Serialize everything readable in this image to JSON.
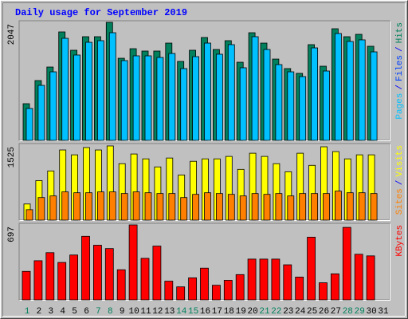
{
  "chart_data": [
    {
      "type": "bar",
      "title": "Daily usage for September 2019",
      "ylim": [
        0,
        2047
      ],
      "yticks": [
        2047
      ],
      "legend": [
        {
          "name": "Pages",
          "color": "#00c0ff"
        },
        {
          "name": "Files",
          "color": "#0040ff"
        },
        {
          "name": "Hits",
          "color": "#00805c"
        }
      ],
      "separator": "/",
      "series": [
        {
          "color": "#00805c",
          "values": [
            636,
            1037,
            1272,
            1881,
            1563,
            1798,
            1798,
            2047,
            1424,
            1590,
            1549,
            1549,
            1687,
            1369,
            1563,
            1784,
            1576,
            1729,
            1355,
            1867,
            1687,
            1410,
            1245,
            1162,
            1660,
            1286,
            1936,
            1798,
            1839,
            1632,
            null
          ]
        },
        {
          "color": "#00c0ff",
          "values": [
            553,
            954,
            1189,
            1770,
            1480,
            1701,
            1729,
            1867,
            1383,
            1466,
            1466,
            1438,
            1507,
            1245,
            1452,
            1687,
            1494,
            1660,
            1259,
            1798,
            1576,
            1314,
            1189,
            1106,
            1604,
            1203,
            1853,
            1715,
            1743,
            1535,
            null
          ]
        }
      ]
    },
    {
      "type": "bar",
      "ylim": [
        0,
        1525
      ],
      "yticks": [
        1525
      ],
      "legend": [
        {
          "name": "Sites",
          "color": "#ff8000"
        },
        {
          "name": "Visits",
          "color": "#ffff00"
        }
      ],
      "separator": "/",
      "series": [
        {
          "color": "#ffff00",
          "values": [
            328,
            804,
            1000,
            1427,
            1328,
            1476,
            1427,
            1509,
            1148,
            1345,
            1246,
            1082,
            1263,
            918,
            1197,
            1246,
            1246,
            1296,
            1033,
            1361,
            1296,
            1148,
            984,
            1361,
            1115,
            1492,
            1394,
            1246,
            1328,
            1328,
            null
          ]
        },
        {
          "color": "#ff8000",
          "values": [
            213,
            459,
            492,
            574,
            557,
            557,
            574,
            574,
            541,
            574,
            557,
            541,
            541,
            459,
            524,
            557,
            541,
            524,
            492,
            541,
            524,
            541,
            492,
            541,
            541,
            541,
            590,
            557,
            557,
            541,
            null
          ]
        }
      ]
    },
    {
      "type": "bar",
      "ylim": [
        0,
        697
      ],
      "yticks": [
        697
      ],
      "legend": [
        {
          "name": "KBytes",
          "color": "#ff0000"
        }
      ],
      "separator": "/",
      "series": [
        {
          "color": "#ff0000",
          "values": [
            265,
            364,
            439,
            348,
            417,
            591,
            508,
            477,
            280,
            697,
            386,
            500,
            174,
            121,
            205,
            295,
            136,
            182,
            235,
            379,
            379,
            379,
            326,
            212,
            583,
            159,
            242,
            674,
            424,
            409,
            null
          ]
        }
      ],
      "categories": [
        "1",
        "2",
        "3",
        "4",
        "5",
        "6",
        "7",
        "8",
        "9",
        "10",
        "11",
        "12",
        "13",
        "14",
        "15",
        "16",
        "17",
        "18",
        "19",
        "20",
        "21",
        "22",
        "23",
        "24",
        "25",
        "26",
        "27",
        "28",
        "29",
        "30",
        "31"
      ],
      "category_colors": [
        "#00805c",
        "#000000",
        "#000000",
        "#000000",
        "#000000",
        "#000000",
        "#00805c",
        "#00805c",
        "#000000",
        "#000000",
        "#000000",
        "#000000",
        "#000000",
        "#00805c",
        "#00805c",
        "#000000",
        "#000000",
        "#000000",
        "#000000",
        "#000000",
        "#00805c",
        "#00805c",
        "#000000",
        "#000000",
        "#000000",
        "#000000",
        "#000000",
        "#00805c",
        "#00805c",
        "#000000",
        "#000000"
      ]
    }
  ]
}
